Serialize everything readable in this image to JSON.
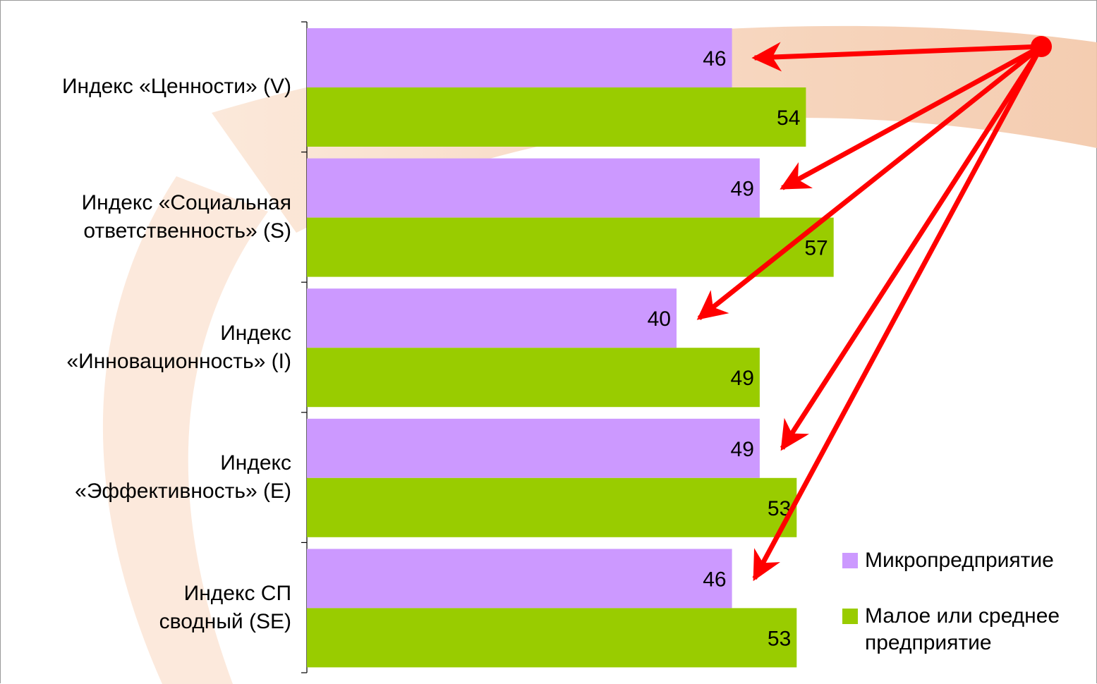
{
  "chart_data": {
    "type": "bar",
    "orientation": "horizontal",
    "categories": [
      "Индекс «Ценности» (V)",
      "Индекс «Социальная\nответственность» (S)",
      "Индекс\n«Инновационность» (I)",
      "Индекс\n«Эффективность» (E)",
      "Индекс СП\nсводный (SE)"
    ],
    "series": [
      {
        "name": "Микропредприятие",
        "color": "#cc99ff",
        "values": [
          46,
          49,
          40,
          49,
          46
        ]
      },
      {
        "name": "Малое или среднее\nпредприятие",
        "color": "#99cc00",
        "values": [
          54,
          57,
          49,
          53,
          53
        ]
      }
    ],
    "xlim": [
      0,
      100
    ],
    "grid": false,
    "data_labels": true,
    "legend_position": "bottom-right",
    "annotation": {
      "type": "arrows",
      "color": "#ff0000",
      "target_series": "Микропредприятие"
    }
  }
}
